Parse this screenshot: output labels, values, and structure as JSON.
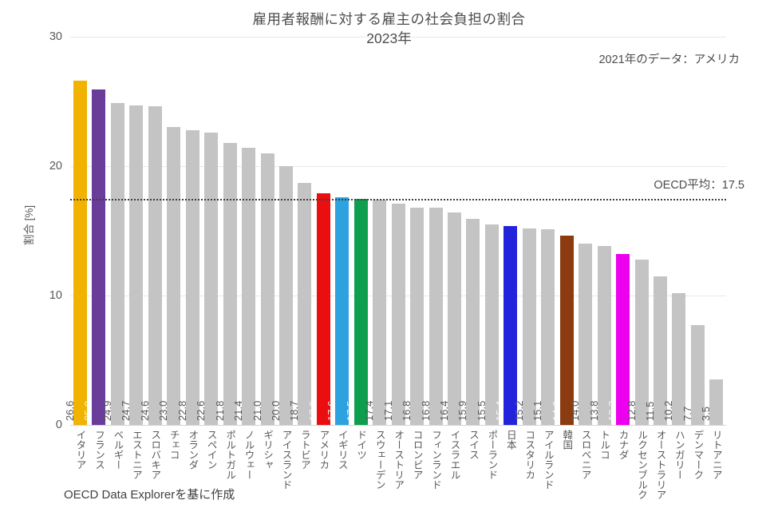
{
  "title": "雇用者報酬に対する雇主の社会負担の割合",
  "subtitle": "2023年",
  "note": "2021年のデータ：アメリカ",
  "source": "OECD Data Explorerを基に作成",
  "colors": {
    "default_bar": "#c4c4c4",
    "highlight_italy": "#f2b200",
    "highlight_france": "#6a3d9a",
    "highlight_usa": "#ea0e10",
    "highlight_uk": "#2ea2df",
    "highlight_germany": "#0d9f4e",
    "highlight_japan": "#2323dc",
    "highlight_korea": "#8c3b10",
    "highlight_canada": "#ed00ed",
    "axis_text": "#595959",
    "gridline": "#e8e8e8"
  },
  "chart_data": {
    "type": "bar",
    "title": "雇用者報酬に対する雇主の社会負担の割合 2023年",
    "xlabel": "",
    "ylabel": "割合 [%]",
    "ylim": [
      0,
      30
    ],
    "yticks": [
      0,
      10,
      20,
      30
    ],
    "grid": true,
    "reference_line": {
      "value": 17.5,
      "label": "OECD平均：17.5"
    },
    "categories": [
      "イタリア",
      "フランス",
      "ベルギー",
      "エストニア",
      "スロバキア",
      "チェコ",
      "オランダ",
      "スペイン",
      "ポルトガル",
      "ノルウェー",
      "ギリシャ",
      "アイスランド",
      "ラトビア",
      "アメリカ",
      "イギリス",
      "ドイツ",
      "スウェーデン",
      "オーストリア",
      "コロンビア",
      "フィンランド",
      "イスラエル",
      "スイス",
      "ポーランド",
      "日本",
      "コスタリカ",
      "アイルランド",
      "韓国",
      "スロベニア",
      "トルコ",
      "カナダ",
      "ルクセンブルク",
      "オーストラリア",
      "ハンガリー",
      "デンマーク",
      "リトアニア"
    ],
    "values": [
      26.6,
      25.9,
      24.9,
      24.7,
      24.6,
      23.0,
      22.8,
      22.6,
      21.8,
      21.4,
      21.0,
      20.0,
      18.7,
      17.9,
      17.6,
      17.5,
      17.4,
      17.1,
      16.8,
      16.8,
      16.4,
      15.9,
      15.5,
      15.4,
      15.2,
      15.1,
      14.6,
      14.0,
      13.8,
      13.2,
      12.8,
      11.5,
      10.2,
      7.7,
      3.5
    ],
    "bar_colors": [
      "#f2b200",
      "#6a3d9a",
      "#c4c4c4",
      "#c4c4c4",
      "#c4c4c4",
      "#c4c4c4",
      "#c4c4c4",
      "#c4c4c4",
      "#c4c4c4",
      "#c4c4c4",
      "#c4c4c4",
      "#c4c4c4",
      "#c4c4c4",
      "#ea0e10",
      "#2ea2df",
      "#0d9f4e",
      "#c4c4c4",
      "#c4c4c4",
      "#c4c4c4",
      "#c4c4c4",
      "#c4c4c4",
      "#c4c4c4",
      "#c4c4c4",
      "#2323dc",
      "#c4c4c4",
      "#c4c4c4",
      "#8c3b10",
      "#c4c4c4",
      "#c4c4c4",
      "#ed00ed",
      "#c4c4c4",
      "#c4c4c4",
      "#c4c4c4",
      "#c4c4c4",
      "#c4c4c4"
    ]
  }
}
